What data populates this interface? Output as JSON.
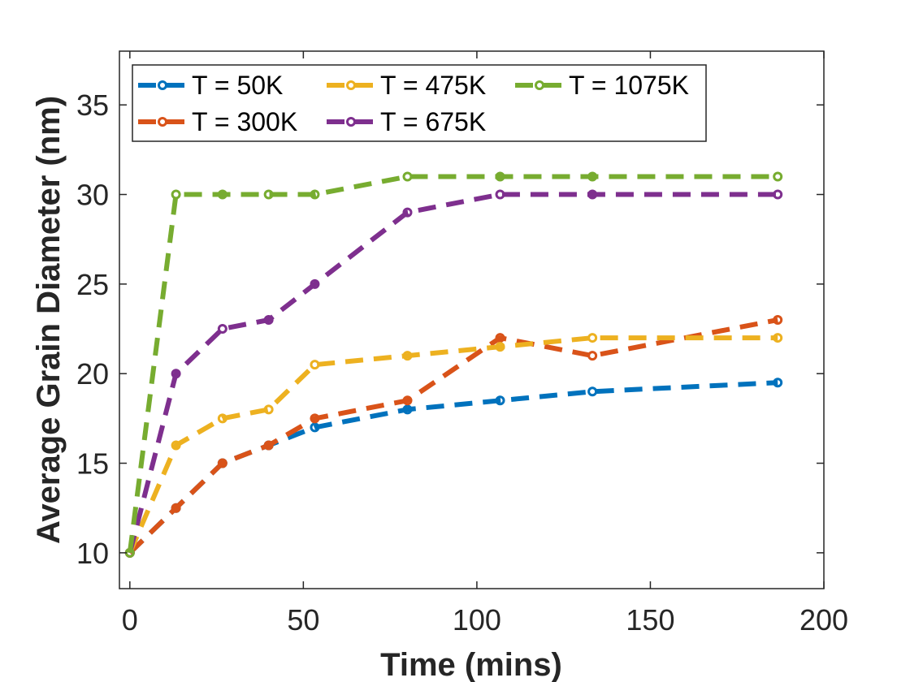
{
  "chart_data": {
    "type": "line",
    "title": "",
    "xlabel": "Time (mins)",
    "ylabel": "Average Grain Diameter (nm)",
    "xlim": [
      -3,
      200
    ],
    "ylim": [
      8,
      38
    ],
    "xticks": [
      0,
      50,
      100,
      150,
      200
    ],
    "yticks": [
      10,
      15,
      20,
      25,
      30,
      35
    ],
    "grid": false,
    "legend_position": "top-left",
    "x": [
      0,
      13.3,
      26.7,
      40,
      53.3,
      80,
      106.7,
      133.3,
      186.7
    ],
    "series": [
      {
        "name": "T = 50K",
        "color": "#0072BD",
        "values": [
          10,
          12.5,
          15,
          16,
          17,
          18,
          18.5,
          19,
          19.5
        ]
      },
      {
        "name": "T = 300K",
        "color": "#D95319",
        "values": [
          10,
          12.5,
          15,
          16,
          17.5,
          18.5,
          22,
          21,
          23
        ]
      },
      {
        "name": "T = 475K",
        "color": "#EDB120",
        "values": [
          10,
          16,
          17.5,
          18,
          20.5,
          21,
          21.5,
          22,
          22
        ]
      },
      {
        "name": "T = 675K",
        "color": "#7E2F8E",
        "values": [
          10,
          20,
          22.5,
          23,
          25,
          29,
          30,
          30,
          30
        ]
      },
      {
        "name": "T = 1075K",
        "color": "#77AC30",
        "values": [
          10,
          30,
          30,
          30,
          30,
          31,
          31,
          31,
          31
        ]
      }
    ]
  }
}
